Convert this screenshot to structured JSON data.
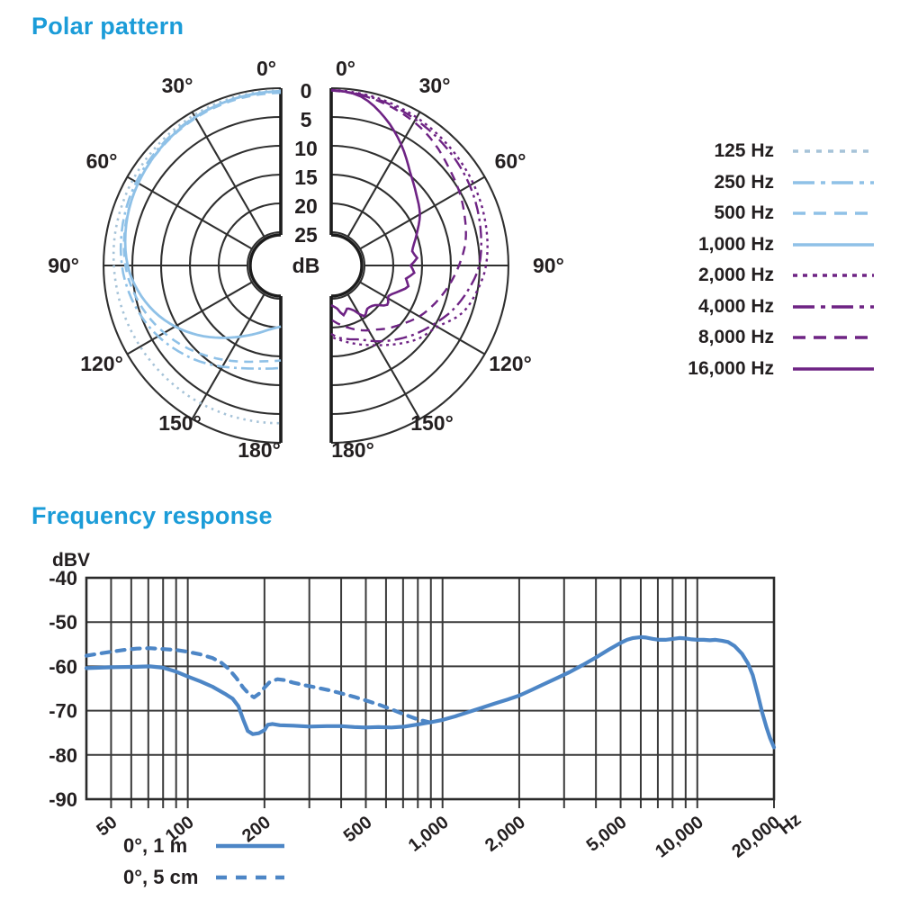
{
  "accent_color": "#1b9cd8",
  "ink_color": "#231f20",
  "grid_color": "#2f2f2f",
  "chart_data": [
    {
      "type": "polar",
      "title": "Polar pattern",
      "radial_unit": "dB",
      "radial_ticks": [
        0,
        5,
        10,
        15,
        20,
        25
      ],
      "radial_range": [
        0,
        25
      ],
      "angle_ticks": [
        0,
        30,
        60,
        90,
        120,
        150,
        180
      ],
      "angle_unit": "°",
      "layout": "two half-circles, left half low frequencies (blue), right half high frequencies (purple), radial scale is attenuation in dB increasing toward center",
      "series": [
        {
          "name": "125 Hz",
          "side": "left",
          "color": "#a6c3d8",
          "width": 2.6,
          "dash": "2.5,5",
          "legend_dash": "6,7",
          "points": [
            [
              0,
              0.4
            ],
            [
              20,
              0.5
            ],
            [
              40,
              0.8
            ],
            [
              60,
              1.1
            ],
            [
              80,
              1.5
            ],
            [
              90,
              1.8
            ],
            [
              105,
              2.2
            ],
            [
              120,
              2.6
            ],
            [
              135,
              2.9
            ],
            [
              150,
              3.1
            ],
            [
              165,
              3.3
            ],
            [
              180,
              3.4
            ]
          ]
        },
        {
          "name": "250 Hz",
          "side": "left",
          "color": "#8fc1e7",
          "width": 2.6,
          "dash": "14,5,3,5",
          "legend_dash": "24,7,5,7",
          "points": [
            [
              0,
              0.6
            ],
            [
              20,
              0.8
            ],
            [
              40,
              1.2
            ],
            [
              60,
              1.8
            ],
            [
              75,
              2.4
            ],
            [
              90,
              3.2
            ],
            [
              100,
              4
            ],
            [
              110,
              5
            ],
            [
              120,
              6.2
            ],
            [
              130,
              7.6
            ],
            [
              140,
              9
            ],
            [
              150,
              10.5
            ],
            [
              160,
              11.8
            ],
            [
              170,
              12.6
            ],
            [
              180,
              13
            ]
          ]
        },
        {
          "name": "500 Hz",
          "side": "left",
          "color": "#8fc1e7",
          "width": 2.6,
          "dash": "10,7",
          "legend_dash": "14,9",
          "points": [
            [
              0,
              0.8
            ],
            [
              20,
              1
            ],
            [
              40,
              1.5
            ],
            [
              60,
              2.2
            ],
            [
              75,
              2.9
            ],
            [
              90,
              3.8
            ],
            [
              100,
              4.8
            ],
            [
              110,
              6
            ],
            [
              120,
              7.4
            ],
            [
              130,
              8.9
            ],
            [
              140,
              10.4
            ],
            [
              150,
              11.8
            ],
            [
              160,
              13
            ],
            [
              170,
              13.9
            ],
            [
              180,
              14.3
            ]
          ]
        },
        {
          "name": "1,000 Hz",
          "side": "left",
          "color": "#8fc1e7",
          "width": 2.8,
          "dash": "",
          "legend_dash": "",
          "points": [
            [
              0,
              0.5
            ],
            [
              20,
              0.8
            ],
            [
              40,
              1.4
            ],
            [
              60,
              2.2
            ],
            [
              75,
              3
            ],
            [
              90,
              4.2
            ],
            [
              100,
              5.6
            ],
            [
              110,
              7.4
            ],
            [
              120,
              9.6
            ],
            [
              130,
              12
            ],
            [
              140,
              14.4
            ],
            [
              150,
              16.5
            ],
            [
              160,
              18.2
            ],
            [
              170,
              19.5
            ],
            [
              180,
              20.2
            ]
          ]
        },
        {
          "name": "2,000 Hz",
          "side": "right",
          "color": "#6e2384",
          "width": 2.4,
          "dash": "3,4.5",
          "legend_dash": "5,6",
          "points": [
            [
              0,
              0.3
            ],
            [
              15,
              0.6
            ],
            [
              30,
              1.1
            ],
            [
              45,
              1.7
            ],
            [
              60,
              2.3
            ],
            [
              75,
              3
            ],
            [
              90,
              3.9
            ],
            [
              100,
              5.1
            ],
            [
              110,
              6.6
            ],
            [
              120,
              9.5
            ],
            [
              130,
              11
            ],
            [
              140,
              13
            ],
            [
              150,
              14.8
            ],
            [
              160,
              16.2
            ],
            [
              170,
              17.4
            ],
            [
              180,
              18.4
            ]
          ]
        },
        {
          "name": "4,000 Hz",
          "side": "right",
          "color": "#6e2384",
          "width": 2.4,
          "dash": "14,5,3,5",
          "legend_dash": "24,7,5,7",
          "points": [
            [
              0,
              0.4
            ],
            [
              15,
              0.8
            ],
            [
              30,
              1.5
            ],
            [
              45,
              2.2
            ],
            [
              60,
              3
            ],
            [
              75,
              4
            ],
            [
              90,
              5.1
            ],
            [
              100,
              6.6
            ],
            [
              110,
              8.3
            ],
            [
              120,
              10.3
            ],
            [
              130,
              12.1
            ],
            [
              140,
              13.9
            ],
            [
              150,
              15.6
            ],
            [
              158,
              16.9
            ],
            [
              166,
              17.6
            ],
            [
              173,
              18.1
            ],
            [
              180,
              18.9
            ]
          ]
        },
        {
          "name": "8,000 Hz",
          "side": "right",
          "color": "#6e2384",
          "width": 2.4,
          "dash": "10,7",
          "legend_dash": "14,9",
          "points": [
            [
              0,
              0.4
            ],
            [
              15,
              1
            ],
            [
              30,
              2
            ],
            [
              40,
              3
            ],
            [
              50,
              4.2
            ],
            [
              60,
              5.1
            ],
            [
              70,
              6.1
            ],
            [
              80,
              7.1
            ],
            [
              90,
              8.6
            ],
            [
              100,
              10.1
            ],
            [
              110,
              11.6
            ],
            [
              120,
              13.1
            ],
            [
              130,
              14.9
            ],
            [
              138,
              16.1
            ],
            [
              145,
              17.2
            ],
            [
              152,
              18
            ],
            [
              160,
              19
            ],
            [
              168,
              20
            ],
            [
              174,
              20.7
            ],
            [
              180,
              21.4
            ]
          ]
        },
        {
          "name": "16,000 Hz",
          "side": "right",
          "color": "#6e2384",
          "width": 2.6,
          "dash": "",
          "legend_dash": "",
          "points": [
            [
              0,
              0.3
            ],
            [
              10,
              1
            ],
            [
              20,
              3.5
            ],
            [
              30,
              6.5
            ],
            [
              40,
              9.5
            ],
            [
              50,
              11.5
            ],
            [
              60,
              13
            ],
            [
              70,
              15
            ],
            [
              80,
              16.5
            ],
            [
              85,
              15.8
            ],
            [
              90,
              17
            ],
            [
              95,
              16.3
            ],
            [
              100,
              17.6
            ],
            [
              105,
              16.9
            ],
            [
              110,
              18
            ],
            [
              118,
              19.5
            ],
            [
              125,
              18.9
            ],
            [
              132,
              20.5
            ],
            [
              140,
              21
            ],
            [
              147,
              20.3
            ],
            [
              153,
              22
            ],
            [
              160,
              22.8
            ],
            [
              166,
              21.9
            ],
            [
              172,
              23.2
            ],
            [
              180,
              23.9
            ]
          ]
        }
      ]
    },
    {
      "type": "line",
      "title": "Frequency response",
      "x_unit": "Hz",
      "y_unit": "dBV",
      "x_scale": "log",
      "xlim": [
        40,
        20000
      ],
      "ylim": [
        -90,
        -40
      ],
      "grid": true,
      "y_ticks": [
        -40,
        -50,
        -60,
        -70,
        -80,
        -90
      ],
      "x_tick_labels": [
        "50",
        "100",
        "200",
        "500",
        "1,000",
        "2,000",
        "5,000",
        "10,000",
        "20,000"
      ],
      "line_color": "#4d86c6",
      "series": [
        {
          "name": "0°, 1 m",
          "color": "#4d86c6",
          "width": 4.2,
          "dash": "",
          "legend_dash": "",
          "points": [
            [
              40,
              -60.4
            ],
            [
              50,
              -60.2
            ],
            [
              63,
              -60.1
            ],
            [
              71,
              -60
            ],
            [
              80,
              -60.3
            ],
            [
              90,
              -61.2
            ],
            [
              100,
              -62.3
            ],
            [
              112,
              -63.4
            ],
            [
              125,
              -64.6
            ],
            [
              140,
              -66.2
            ],
            [
              150,
              -67.3
            ],
            [
              158,
              -69
            ],
            [
              165,
              -72
            ],
            [
              172,
              -74.6
            ],
            [
              180,
              -75.3
            ],
            [
              190,
              -75.1
            ],
            [
              200,
              -74.4
            ],
            [
              206,
              -73.2
            ],
            [
              215,
              -73
            ],
            [
              230,
              -73.3
            ],
            [
              260,
              -73.4
            ],
            [
              300,
              -73.6
            ],
            [
              350,
              -73.5
            ],
            [
              400,
              -73.5
            ],
            [
              450,
              -73.7
            ],
            [
              500,
              -73.8
            ],
            [
              560,
              -73.7
            ],
            [
              630,
              -73.8
            ],
            [
              710,
              -73.6
            ],
            [
              800,
              -73.1
            ],
            [
              900,
              -72.6
            ],
            [
              1000,
              -72.1
            ],
            [
              1120,
              -71.3
            ],
            [
              1250,
              -70.4
            ],
            [
              1400,
              -69.5
            ],
            [
              1600,
              -68.4
            ],
            [
              1800,
              -67.5
            ],
            [
              2000,
              -66.6
            ],
            [
              2240,
              -65.3
            ],
            [
              2500,
              -64
            ],
            [
              2800,
              -62.7
            ],
            [
              3150,
              -61.3
            ],
            [
              3550,
              -59.7
            ],
            [
              4000,
              -58
            ],
            [
              4500,
              -56.2
            ],
            [
              5000,
              -54.7
            ],
            [
              5300,
              -54
            ],
            [
              5600,
              -53.6
            ],
            [
              6000,
              -53.4
            ],
            [
              6300,
              -53.5
            ],
            [
              6700,
              -53.8
            ],
            [
              7100,
              -54
            ],
            [
              7500,
              -54
            ],
            [
              8000,
              -53.8
            ],
            [
              8500,
              -53.6
            ],
            [
              9000,
              -53.7
            ],
            [
              9500,
              -53.9
            ],
            [
              10000,
              -54
            ],
            [
              10600,
              -54
            ],
            [
              11200,
              -54.1
            ],
            [
              11800,
              -54
            ],
            [
              12500,
              -54.2
            ],
            [
              13200,
              -54.5
            ],
            [
              14000,
              -55.4
            ],
            [
              15000,
              -57.2
            ],
            [
              15800,
              -59.3
            ],
            [
              16500,
              -62
            ],
            [
              17300,
              -66.5
            ],
            [
              18000,
              -70.5
            ],
            [
              18700,
              -73.8
            ],
            [
              19300,
              -76.2
            ],
            [
              20000,
              -78.3
            ]
          ]
        },
        {
          "name": "0°, 5 cm",
          "color": "#4d86c6",
          "width": 4.2,
          "dash": "9,8",
          "legend_dash": "12,10",
          "points": [
            [
              40,
              -57.6
            ],
            [
              45,
              -57.1
            ],
            [
              50,
              -56.7
            ],
            [
              56,
              -56.3
            ],
            [
              63,
              -56
            ],
            [
              71,
              -55.9
            ],
            [
              80,
              -56.1
            ],
            [
              90,
              -56.3
            ],
            [
              100,
              -56.7
            ],
            [
              112,
              -57.3
            ],
            [
              125,
              -58.1
            ],
            [
              135,
              -59.1
            ],
            [
              145,
              -60.6
            ],
            [
              155,
              -62.6
            ],
            [
              165,
              -64.8
            ],
            [
              175,
              -66.4
            ],
            [
              182,
              -67
            ],
            [
              190,
              -66.2
            ],
            [
              200,
              -64.8
            ],
            [
              210,
              -63.5
            ],
            [
              225,
              -62.9
            ],
            [
              240,
              -63.1
            ],
            [
              260,
              -63.7
            ],
            [
              285,
              -64.2
            ],
            [
              320,
              -64.8
            ],
            [
              360,
              -65.4
            ],
            [
              400,
              -66.1
            ],
            [
              450,
              -66.9
            ],
            [
              500,
              -67.7
            ],
            [
              560,
              -68.6
            ],
            [
              630,
              -69.7
            ],
            [
              710,
              -70.9
            ],
            [
              800,
              -72
            ],
            [
              900,
              -72.7
            ]
          ]
        }
      ]
    }
  ]
}
